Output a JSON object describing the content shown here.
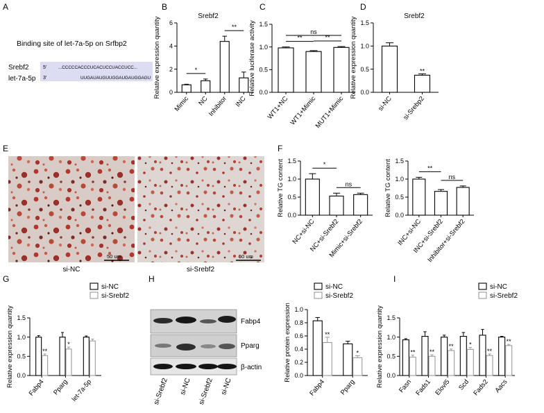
{
  "panels": {
    "A": {
      "letter": "A",
      "title": "Binding site of let-7a-5p on Srfbp2",
      "row1_label": "Srebf2",
      "row1_prime": "5'",
      "row1_seq": "...CCCCCACCCUCACUCCUACCUCC...",
      "row2_label": "let-7a-5p",
      "row2_prime": "3'",
      "row2_seq": "UUGAUAUGUUGGAUGAUGGAGU"
    },
    "E": {
      "letter": "E",
      "img1_label": "si-NC",
      "img2_label": "si-Srebf2",
      "scale1": "50 um",
      "scale2": "50 um"
    },
    "H": {
      "letter": "H",
      "blot_labels": [
        "Fabp4",
        "Pparg",
        "β-actin"
      ],
      "lanes": [
        "si-Srebf2",
        "si-NC",
        "si-Srebf2",
        "si-NC"
      ]
    }
  },
  "chart_data": [
    {
      "id": "B",
      "letter": "B",
      "type": "bar",
      "title": "Srebf2",
      "ylabel": "Relative expression quantity",
      "categories": [
        "Mimic",
        "NC",
        "Inhibitor",
        "INC"
      ],
      "values": [
        0.65,
        1.0,
        4.4,
        1.25
      ],
      "errors": [
        0.05,
        0.15,
        0.45,
        0.5
      ],
      "yticks": [
        "0",
        "2",
        "4",
        "6"
      ],
      "ylim": [
        0,
        6
      ],
      "sig": [
        {
          "from": 0,
          "to": 1,
          "label": "*"
        },
        {
          "from": 2,
          "to": 3,
          "label": "**"
        }
      ]
    },
    {
      "id": "C",
      "letter": "C",
      "type": "bar",
      "title": "",
      "ylabel": "Relative luciferase activity",
      "categories": [
        "WT1+NC",
        "WT1+Mimic",
        "MUT1+Mimic"
      ],
      "values": [
        0.98,
        0.9,
        0.99
      ],
      "errors": [
        0.02,
        0.02,
        0.02
      ],
      "yticks": [
        "0.0",
        "0.5",
        "1.0",
        "1.5"
      ],
      "ylim": [
        0,
        1.5
      ],
      "sig": [
        {
          "from": 0,
          "to": 2,
          "label": "ns"
        },
        {
          "from": 0,
          "to": 1,
          "label": "**"
        },
        {
          "from": 1,
          "to": 2,
          "label": "**"
        }
      ]
    },
    {
      "id": "D",
      "letter": "D",
      "type": "bar",
      "title": "Srebf2",
      "ylabel": "Relative expression quantity",
      "categories": [
        "si-NC",
        "si-Srebp2"
      ],
      "values": [
        1.0,
        0.37
      ],
      "errors": [
        0.07,
        0.03
      ],
      "yticks": [
        "0.0",
        "0.5",
        "1.0",
        "1.5"
      ],
      "ylim": [
        0,
        1.5
      ],
      "point_labels": [
        "",
        "**"
      ]
    },
    {
      "id": "F1",
      "letter": "F",
      "type": "bar",
      "title": "",
      "ylabel": "Relative TG content",
      "categories": [
        "NC+si-NC",
        "NC+si-Srebf2",
        "Mimic+si-Srebf2"
      ],
      "values": [
        1.0,
        0.53,
        0.57
      ],
      "errors": [
        0.15,
        0.08,
        0.04
      ],
      "yticks": [
        "0.0",
        "0.5",
        "1.0",
        "1.5"
      ],
      "ylim": [
        0,
        1.5
      ],
      "sig": [
        {
          "from": 0,
          "to": 1,
          "label": "*"
        },
        {
          "from": 1,
          "to": 2,
          "label": "ns"
        }
      ]
    },
    {
      "id": "F2",
      "letter": "",
      "type": "bar",
      "title": "",
      "ylabel": "Relative TG content",
      "categories": [
        "INC+si-NC",
        "INC+si-Srebf2",
        "Inhibitor+si-Srebf2"
      ],
      "values": [
        1.0,
        0.66,
        0.77
      ],
      "errors": [
        0.05,
        0.05,
        0.04
      ],
      "yticks": [
        "0.0",
        "0.5",
        "1.0",
        "1.5"
      ],
      "ylim": [
        0,
        1.5
      ],
      "sig": [
        {
          "from": 0,
          "to": 1,
          "label": "**"
        },
        {
          "from": 1,
          "to": 2,
          "label": "ns"
        }
      ]
    },
    {
      "id": "G",
      "letter": "G",
      "type": "bar",
      "title": "",
      "ylabel": "Relative expression quantity",
      "categories": [
        "Fabp4",
        "Pparg",
        "let-7a-5p"
      ],
      "series": [
        {
          "name": "si-NC",
          "values": [
            1.0,
            1.0,
            1.0
          ],
          "errors": [
            0.04,
            0.12,
            0.03
          ]
        },
        {
          "name": "si-Srebf2",
          "values": [
            0.52,
            0.69,
            0.9
          ],
          "errors": [
            0.04,
            0.05,
            0.05
          ]
        }
      ],
      "point_labels": [
        [
          "",
          ""
        ],
        [
          "**",
          "*"
        ],
        [
          "",
          ""
        ]
      ],
      "yticks": [
        "0.0",
        "0.5",
        "1.0",
        "1.5"
      ],
      "ylim": [
        0,
        1.5
      ],
      "legend": "top-right"
    },
    {
      "id": "H",
      "letter": "",
      "type": "bar",
      "title": "",
      "ylabel": "Relative protein expression",
      "categories": [
        "Fabp4",
        "Pparg"
      ],
      "series": [
        {
          "name": "si-NC",
          "values": [
            0.83,
            0.48
          ],
          "errors": [
            0.05,
            0.04
          ]
        },
        {
          "name": "si-Srebf2",
          "values": [
            0.5,
            0.27
          ],
          "errors": [
            0.08,
            0.03
          ]
        }
      ],
      "point_labels": [
        [
          "",
          ""
        ],
        [
          "**",
          "*"
        ]
      ],
      "yticks": [
        "0.0",
        "0.2",
        "0.4",
        "0.6",
        "0.8",
        "1.0"
      ],
      "ylim": [
        0,
        1.0
      ],
      "legend": "top-right"
    },
    {
      "id": "I",
      "letter": "I",
      "type": "bar",
      "title": "",
      "ylabel": "Relative expression quantity",
      "categories": [
        "Fasn",
        "Fads1",
        "Elovl5",
        "Scd",
        "Fads2",
        "Aacs"
      ],
      "series": [
        {
          "name": "si-NC",
          "values": [
            0.93,
            1.02,
            1.0,
            1.02,
            1.05,
            1.0
          ],
          "errors": [
            0.03,
            0.12,
            0.05,
            0.1,
            0.15,
            0.02
          ]
        },
        {
          "name": "si-Srebf2",
          "values": [
            0.48,
            0.5,
            0.65,
            0.68,
            0.52,
            0.78
          ],
          "errors": [
            0.05,
            0.04,
            0.04,
            0.05,
            0.04,
            0.03
          ]
        }
      ],
      "point_labels": [
        [
          "",
          ""
        ],
        [
          "**",
          "**",
          "**",
          "*",
          "**",
          "**"
        ]
      ],
      "yticks": [
        "0.0",
        "0.5",
        "1.0",
        "1.5"
      ],
      "ylim": [
        0,
        1.5
      ],
      "legend": "top-right"
    }
  ]
}
